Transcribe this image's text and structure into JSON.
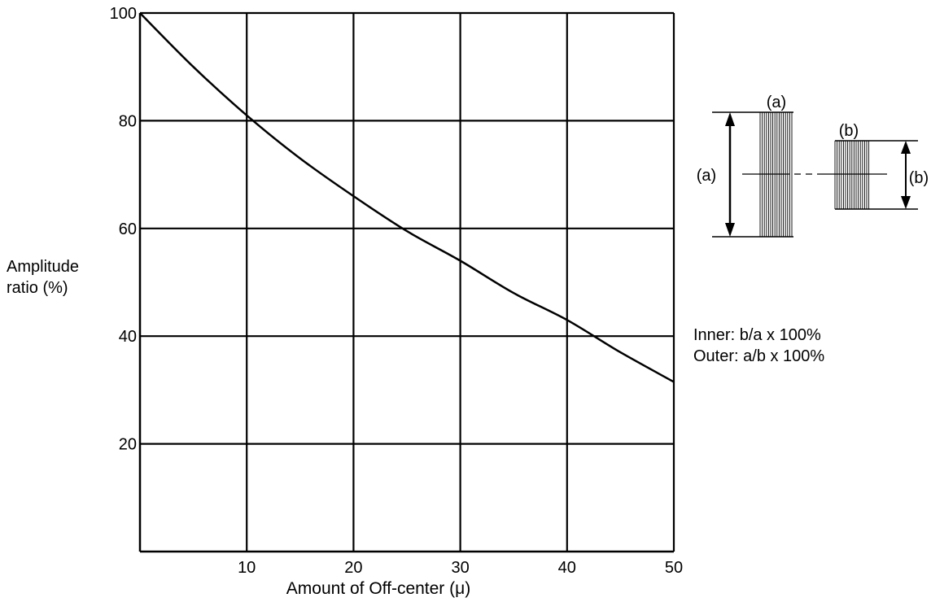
{
  "chart_data": {
    "type": "line",
    "xlabel": "Amount of Off-center (μ)",
    "ylabel": [
      "Amplitude",
      "ratio (%)"
    ],
    "xlim": [
      0,
      50
    ],
    "ylim": [
      0,
      100
    ],
    "x_ticks": [
      10,
      20,
      30,
      40,
      50
    ],
    "y_ticks": [
      20,
      40,
      60,
      80,
      100
    ],
    "grid": true,
    "series": [
      {
        "x": [
          0,
          5,
          10,
          15,
          20,
          25,
          30,
          35,
          40,
          45,
          50
        ],
        "y": [
          100,
          90,
          81,
          73,
          66,
          59.5,
          54,
          48,
          43,
          37,
          31.5
        ]
      }
    ]
  },
  "annotations": {
    "formula_inner": "Inner: b/a x 100%",
    "formula_outer": "Outer: a/b x 100%",
    "label_a": "(a)",
    "label_b": "(b)"
  },
  "colors": {
    "line": "#000000",
    "background": "#ffffff"
  }
}
